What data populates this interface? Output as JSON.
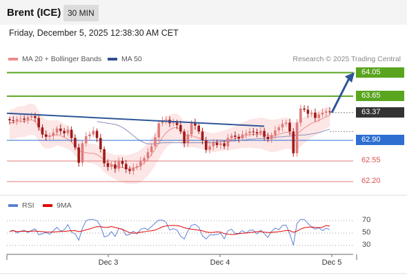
{
  "header": {
    "title": "Brent (ICE)",
    "timeframe": "30 MIN"
  },
  "datetime": "Friday, December 5, 2025 12:38:30 AM CET",
  "credit": "Research © 2025 Trading Central",
  "legend": [
    {
      "label": "MA 20 + Bollinger Bands",
      "color": "#f08a8a"
    },
    {
      "label": "MA 50",
      "color": "#2d4f8e"
    }
  ],
  "rsi_legend": [
    {
      "label": "RSI",
      "color": "#5b7fd6"
    },
    {
      "label": "9MA",
      "color": "#e00000"
    }
  ],
  "colors": {
    "resistance": "#5aa51f",
    "support": "#2d6fd1",
    "support_dashed": "#e07a7a",
    "current": "#333333",
    "trendline": "#2d5597",
    "bullish": "#e07a7a",
    "bearish": "#a11a1a"
  },
  "chart_data": [
    {
      "type": "candlestick",
      "title": "Brent (ICE)",
      "ylim": [
        62.05,
        64.15
      ],
      "x_ticks": [
        "Dec 3",
        "Dec 4",
        "Dec 5"
      ],
      "levels": [
        {
          "label": "64.05",
          "value": 64.05,
          "kind": "resistance"
        },
        {
          "label": "63.65",
          "value": 63.65,
          "kind": "resistance"
        },
        {
          "label": "63.37",
          "value": 63.37,
          "kind": "current"
        },
        {
          "label": "62.90",
          "value": 62.9,
          "kind": "support"
        },
        {
          "label": "62.55",
          "value": 62.55,
          "kind": "support_minor"
        },
        {
          "label": "62.20",
          "value": 62.2,
          "kind": "support_minor"
        }
      ],
      "close_series": [
        63.24,
        63.23,
        63.26,
        63.27,
        63.25,
        63.29,
        63.31,
        63.28,
        63.12,
        63.0,
        62.96,
        62.98,
        63.03,
        63.1,
        63.06,
        63.02,
        63.08,
        62.94,
        62.78,
        62.52,
        62.85,
        62.97,
        63.0,
        63.06,
        62.94,
        62.75,
        62.51,
        62.45,
        62.49,
        62.42,
        62.55,
        62.5,
        62.41,
        62.38,
        62.44,
        62.46,
        62.55,
        62.6,
        62.7,
        62.8,
        62.95,
        63.19,
        63.24,
        63.25,
        63.19,
        63.2,
        63.16,
        63.05,
        62.85,
        63.0,
        63.2,
        63.15,
        63.05,
        62.9,
        62.74,
        62.8,
        62.86,
        62.82,
        62.85,
        62.8,
        62.94,
        62.98,
        62.96,
        62.93,
        63.0,
        63.02,
        63.05,
        63.04,
        63.02,
        63.06,
        62.96,
        62.92,
        62.99,
        63.07,
        63.12,
        63.18,
        63.2,
        63.05,
        62.68,
        63.2,
        63.44,
        63.42,
        63.35,
        63.37,
        63.28,
        63.34,
        63.37,
        63.39,
        63.38
      ],
      "ma20": [
        63.2,
        63.2,
        63.22,
        63.23,
        63.22,
        63.24,
        63.25,
        63.22,
        63.12,
        63.02,
        62.98,
        62.97,
        62.98,
        63.0,
        62.98,
        62.95,
        62.92,
        62.88,
        62.8,
        62.72,
        62.7,
        62.69,
        62.68,
        62.68,
        62.66,
        62.62,
        62.56,
        62.52,
        62.49,
        62.46,
        62.45,
        62.44,
        62.42,
        62.42,
        62.43,
        62.44,
        62.47,
        62.52,
        62.58,
        62.66,
        62.75,
        62.85,
        62.95,
        63.03,
        63.08,
        63.11,
        63.12,
        63.08,
        63.0,
        62.98,
        62.98,
        62.96,
        62.94,
        62.92,
        62.89,
        62.87,
        62.86,
        62.87,
        62.88,
        62.89,
        62.9,
        62.92,
        62.93,
        62.95,
        62.97,
        62.98,
        63.0,
        63.0,
        63.0,
        63.01,
        63.0,
        62.98,
        62.97,
        62.98,
        63.0,
        63.02,
        63.04,
        63.03,
        62.98,
        63.0,
        63.06,
        63.11,
        63.15,
        63.19,
        63.21,
        63.24,
        63.27,
        63.3,
        63.32
      ],
      "ma50": [
        63.22,
        63.21,
        63.2,
        63.19,
        63.18,
        63.17,
        63.15,
        63.12,
        63.08,
        63.03,
        62.98,
        62.93,
        62.89,
        62.86,
        62.84,
        62.84,
        62.84,
        62.85,
        62.86,
        62.86,
        62.86,
        62.86,
        62.86,
        62.86,
        62.86,
        62.86,
        62.86,
        62.86,
        62.86,
        62.86,
        62.86,
        62.86,
        62.87,
        62.87,
        62.88,
        62.88,
        62.88,
        62.89,
        62.89,
        62.9,
        62.9,
        62.91,
        62.92,
        62.92,
        62.93,
        62.93,
        62.94,
        62.94,
        62.95,
        62.95,
        62.96,
        62.96,
        62.97,
        62.97,
        62.98,
        62.98,
        62.99,
        62.99,
        63.0,
        63.01,
        63.02,
        63.03,
        63.05,
        63.07,
        63.09
      ],
      "trendline": [
        [
          0,
          63.36
        ],
        [
          70,
          63.14
        ]
      ],
      "rsi": {
        "levels": [
          70,
          50,
          30
        ],
        "ylim": [
          20,
          80
        ]
      }
    }
  ]
}
